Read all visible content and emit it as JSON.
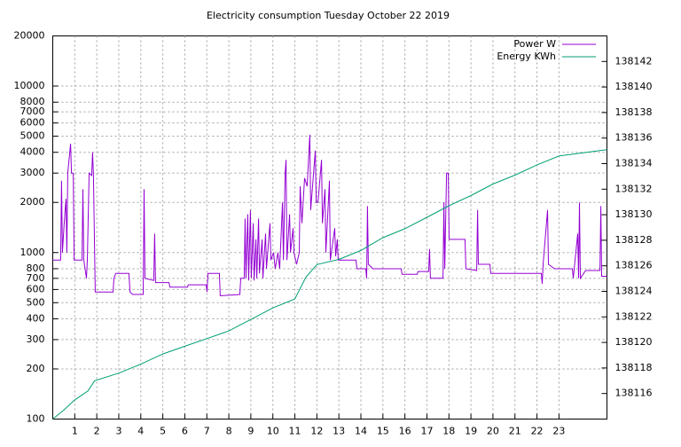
{
  "chart_data": {
    "type": "line",
    "title": "Electricity consumption Tuesday October 22 2019",
    "xlim": [
      0,
      25.18
    ],
    "xticks": [
      1,
      2,
      3,
      4,
      5,
      6,
      7,
      8,
      9,
      10,
      11,
      12,
      13,
      14,
      15,
      16,
      17,
      18,
      19,
      20,
      21,
      22,
      23
    ],
    "ylim": [
      100,
      20000
    ],
    "log_y": true,
    "yticks": [
      100,
      200,
      300,
      400,
      500,
      600,
      700,
      800,
      1000,
      2000,
      3000,
      4000,
      5000,
      6000,
      7000,
      8000,
      10000,
      20000
    ],
    "y2lim": [
      138114,
      138144
    ],
    "y2ticks": [
      138116,
      138118,
      138120,
      138122,
      138124,
      138126,
      138128,
      138130,
      138132,
      138134,
      138136,
      138138,
      138140,
      138142
    ],
    "grid": true,
    "legend": "top-right",
    "series": [
      {
        "name": "Power W",
        "color": "#9400d3",
        "x": [
          0,
          0.36,
          0.4,
          0.44,
          0.52,
          0.6,
          0.64,
          0.68,
          0.81,
          0.85,
          0.93,
          0.97,
          1.33,
          1.37,
          1.41,
          1.53,
          1.57,
          1.65,
          1.77,
          1.81,
          1.85,
          1.93,
          2.74,
          2.78,
          2.86,
          3.46,
          3.51,
          3.63,
          4.11,
          4.15,
          4.19,
          4.59,
          4.63,
          4.67,
          5.28,
          5.32,
          6.12,
          6.16,
          6.97,
          7.01,
          7.05,
          7.57,
          7.61,
          8.5,
          8.54,
          8.7,
          8.74,
          8.78,
          8.86,
          8.9,
          8.98,
          9.02,
          9.11,
          9.15,
          9.23,
          9.27,
          9.35,
          9.39,
          9.51,
          9.55,
          9.67,
          9.71,
          9.87,
          9.91,
          10.03,
          10.11,
          10.23,
          10.31,
          10.44,
          10.48,
          10.56,
          10.6,
          10.64,
          10.76,
          10.8,
          10.92,
          10.96,
          11.08,
          11.2,
          11.24,
          11.32,
          11.44,
          11.56,
          11.68,
          11.72,
          11.93,
          11.97,
          12.05,
          12.21,
          12.25,
          12.37,
          12.41,
          12.57,
          12.61,
          12.81,
          12.85,
          12.93,
          12.97,
          13.78,
          13.82,
          14.22,
          14.26,
          14.3,
          14.34,
          14.46,
          14.54,
          15.83,
          15.87,
          16.56,
          16.6,
          17.08,
          17.12,
          17.16,
          17.73,
          17.77,
          17.81,
          17.89,
          17.97,
          18.01,
          18.73,
          18.77,
          19.26,
          19.3,
          19.34,
          19.86,
          19.9,
          22.2,
          22.24,
          22.28,
          22.48,
          22.52,
          22.8,
          23.61,
          23.65,
          23.85,
          23.89,
          23.93,
          23.97,
          24.21,
          24.86,
          24.9,
          24.94,
          25.18
        ],
        "values": [
          900,
          900,
          2700,
          1000,
          1500,
          2100,
          1000,
          3000,
          4500,
          3000,
          3000,
          900,
          900,
          2400,
          900,
          700,
          900,
          3000,
          2900,
          4000,
          2900,
          580,
          580,
          700,
          750,
          750,
          580,
          560,
          560,
          2400,
          700,
          680,
          1300,
          660,
          660,
          620,
          620,
          640,
          640,
          580,
          750,
          750,
          550,
          560,
          700,
          700,
          1600,
          700,
          1700,
          680,
          1800,
          700,
          1500,
          680,
          1200,
          700,
          1600,
          750,
          1200,
          700,
          1300,
          800,
          1500,
          900,
          1000,
          800,
          1000,
          800,
          2000,
          900,
          3000,
          3600,
          900,
          1700,
          1000,
          1400,
          1000,
          850,
          1000,
          2500,
          1500,
          2800,
          2500,
          5100,
          1800,
          4100,
          2000,
          2000,
          3600,
          1500,
          2400,
          1000,
          2700,
          900,
          1400,
          950,
          1200,
          900,
          900,
          800,
          800,
          700,
          1900,
          850,
          820,
          800,
          800,
          740,
          740,
          770,
          770,
          1050,
          700,
          700,
          2000,
          800,
          3000,
          3000,
          1200,
          1200,
          800,
          780,
          1800,
          850,
          850,
          750,
          750,
          650,
          850,
          1800,
          850,
          800,
          800,
          700,
          1300,
          700,
          2000,
          700,
          780,
          780,
          1900,
          720,
          720
        ]
      },
      {
        "name": "Energy KWh",
        "color": "#009e73",
        "axis": "y2",
        "x": [
          0,
          0.5,
          1,
          1.6,
          1.9,
          3,
          4,
          5,
          6,
          7,
          8,
          9,
          10,
          11,
          11.5,
          12,
          13,
          14,
          15,
          16,
          17,
          18,
          19,
          20,
          21,
          22,
          23,
          25.18
        ],
        "values": [
          138114,
          138114.7,
          138115.5,
          138116.2,
          138117,
          138117.6,
          138118.3,
          138119.1,
          138119.7,
          138120.3,
          138120.9,
          138121.8,
          138122.7,
          138123.4,
          138125.1,
          138126.1,
          138126.5,
          138127.2,
          138128.2,
          138128.9,
          138129.8,
          138130.7,
          138131.5,
          138132.4,
          138133.1,
          138133.9,
          138134.6,
          138135.1
        ]
      }
    ]
  }
}
